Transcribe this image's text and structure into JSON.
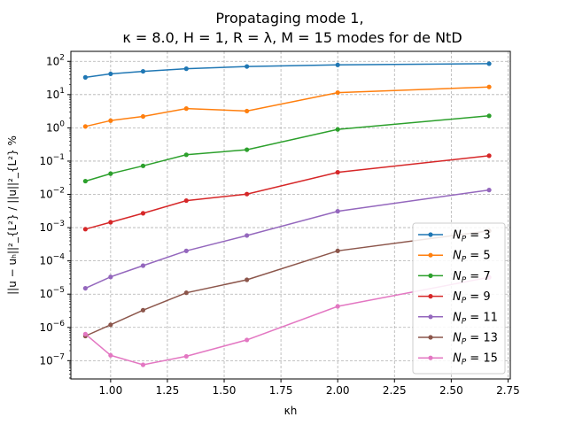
{
  "chart_data": {
    "type": "line",
    "title": "Propataging mode 1,",
    "subtitle": "κ = 8.0, H = 1, R = λ, M = 15 modes for de NtD",
    "xlabel": "κh",
    "ylabel": "||u − uₕ||²_{L²} / ||u||²_{L²} %",
    "y_scale": "log",
    "grid": true,
    "legend_position": "lower-right",
    "xlim": [
      0.825,
      2.76
    ],
    "ylim_log10": [
      -7.55,
      2.3
    ],
    "x_ticks": [
      1.0,
      1.25,
      1.5,
      1.75,
      2.0,
      2.25,
      2.5,
      2.75
    ],
    "x_tick_labels": [
      "1.00",
      "1.25",
      "1.50",
      "1.75",
      "2.00",
      "2.25",
      "2.50",
      "2.75"
    ],
    "y_ticks_exp": [
      2,
      1,
      0,
      -1,
      -2,
      -3,
      -4,
      -5,
      -6,
      -7
    ],
    "x": [
      0.8889,
      1.0,
      1.1429,
      1.3333,
      1.6,
      2.0,
      2.6667
    ],
    "series": [
      {
        "name": "N_P = 3",
        "sub": "P",
        "label_base": "N",
        "label_value": "= 3",
        "color": "#1f77b4",
        "values": [
          33,
          42,
          50,
          60,
          70,
          78,
          85
        ]
      },
      {
        "name": "N_P = 5",
        "sub": "P",
        "label_base": "N",
        "label_value": "= 5",
        "color": "#ff7f0e",
        "values": [
          1.1,
          1.65,
          2.2,
          3.8,
          3.2,
          11.5,
          17
        ]
      },
      {
        "name": "N_P = 7",
        "sub": "P",
        "label_base": "N",
        "label_value": "= 7",
        "color": "#2ca02c",
        "values": [
          0.025,
          0.042,
          0.072,
          0.155,
          0.22,
          0.9,
          2.3
        ]
      },
      {
        "name": "N_P = 9",
        "sub": "P",
        "label_base": "N",
        "label_value": "= 9",
        "color": "#d62728",
        "values": [
          0.0009,
          0.00145,
          0.0027,
          0.0065,
          0.0102,
          0.046,
          0.145
        ]
      },
      {
        "name": "N_P = 11",
        "sub": "P",
        "label_base": "N",
        "label_value": "= 11",
        "color": "#9467bd",
        "values": [
          1.5e-05,
          3.3e-05,
          7.2e-05,
          0.0002,
          0.00058,
          0.0031,
          0.0135
        ]
      },
      {
        "name": "N_P = 13",
        "sub": "P",
        "label_base": "N",
        "label_value": "= 13",
        "color": "#8c564b",
        "values": [
          5.5e-07,
          1.2e-06,
          3.3e-06,
          1.1e-05,
          2.7e-05,
          0.0002,
          0.0008
        ]
      },
      {
        "name": "N_P = 15",
        "sub": "P",
        "label_base": "N",
        "label_value": "= 15",
        "color": "#e377c2",
        "values": [
          6.3e-07,
          1.45e-07,
          7.5e-08,
          1.35e-07,
          4.2e-07,
          4.3e-06,
          3.2e-05
        ]
      }
    ]
  }
}
